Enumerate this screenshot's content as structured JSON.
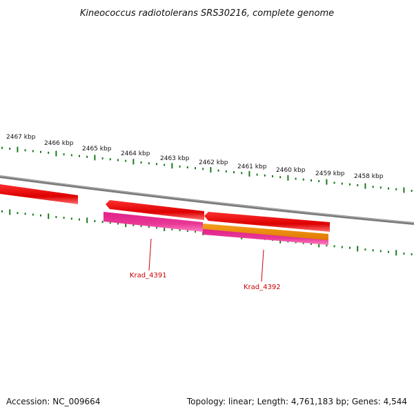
{
  "title": "Kineococcus radiotolerans SRS30216, complete genome",
  "scale_labels": [
    "2467 kbp",
    "2466 kbp",
    "2465 kbp",
    "2464 kbp",
    "2463 kbp",
    "2462 kbp",
    "2461 kbp",
    "2460 kbp",
    "2459 kbp",
    "2458 kbp"
  ],
  "genes": [
    {
      "name": "Krad_4391",
      "color": "#cc0000"
    },
    {
      "name": "Krad_4392",
      "color": "#cc0000"
    }
  ],
  "footer": {
    "accession": "Accession: NC_009664",
    "summary": "Topology: linear; Length: 4,761,183 bp; Genes: 4,544"
  },
  "colors": {
    "backbone": "#808080",
    "tick": "#1a7a1a",
    "cds_forward": "#ee0000",
    "cds_reverse": "#ee0000",
    "gene_pink": "#e8208a",
    "gene_orange": "#f08c00"
  }
}
